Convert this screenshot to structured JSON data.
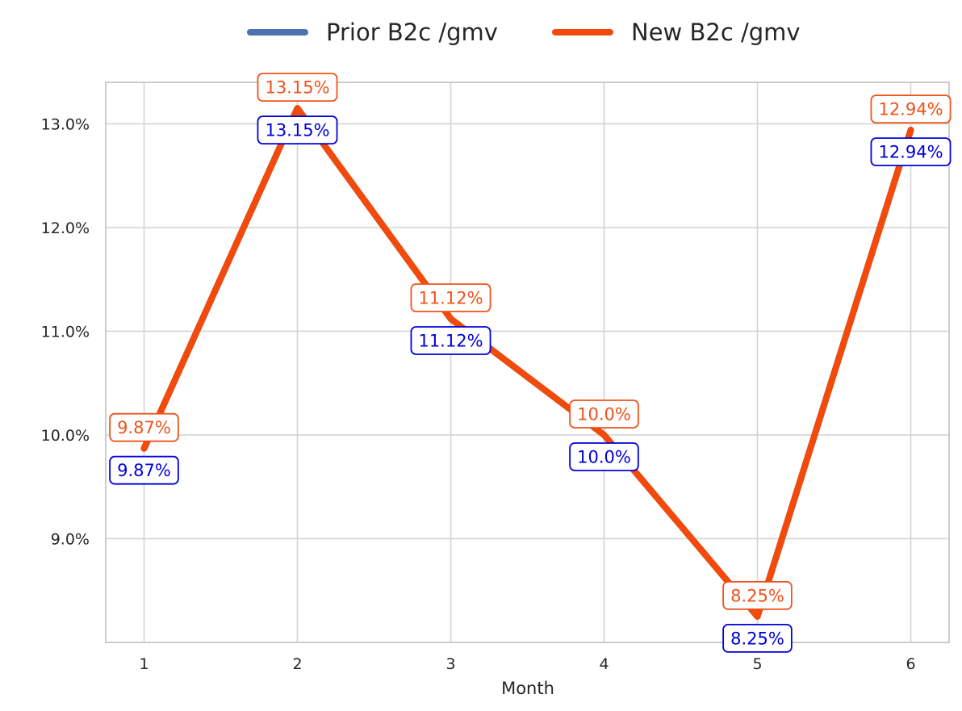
{
  "chart_data": {
    "type": "line",
    "title": "",
    "xlabel": "Month",
    "ylabel": "",
    "x": [
      1,
      2,
      3,
      4,
      5,
      6
    ],
    "x_tick_labels": [
      "1",
      "2",
      "3",
      "4",
      "5",
      "6"
    ],
    "y_tick_labels": [
      "9.0%",
      "10.0%",
      "11.0%",
      "12.0%",
      "13.0%"
    ],
    "y_ticks": [
      9.0,
      10.0,
      11.0,
      12.0,
      13.0
    ],
    "xlim": [
      0.75,
      6.25
    ],
    "ylim": [
      8.0,
      13.4
    ],
    "grid": true,
    "legend_position": "top-center",
    "series": [
      {
        "name": "Prior B2c /gmv",
        "color": "#4c72b0",
        "label_color": "#0000dd",
        "values": [
          9.87,
          13.15,
          11.12,
          10.0,
          8.25,
          12.94
        ],
        "labels": [
          "9.87%",
          "13.15%",
          "11.12%",
          "10.0%",
          "8.25%",
          "12.94%"
        ]
      },
      {
        "name": "New B2c /gmv",
        "color": "#f24a0a",
        "label_color": "#f0521a",
        "values": [
          9.87,
          13.15,
          11.12,
          10.0,
          8.25,
          12.94
        ],
        "labels": [
          "9.87%",
          "13.15%",
          "11.12%",
          "10.0%",
          "8.25%",
          "12.94%"
        ]
      }
    ]
  }
}
